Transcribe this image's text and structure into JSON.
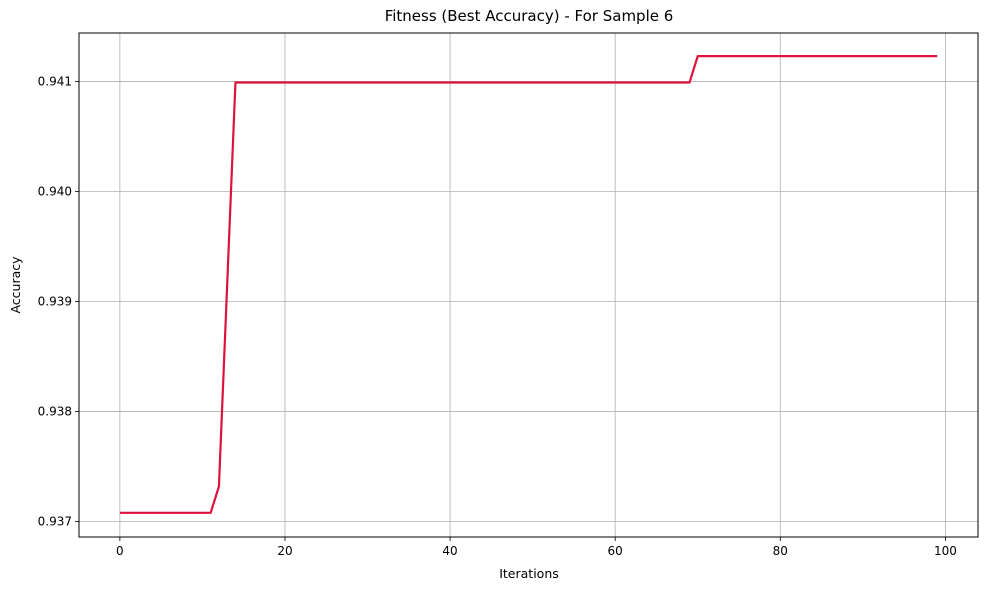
{
  "chart_data": {
    "type": "line",
    "title": "Fitness (Best Accuracy) - For Sample 6",
    "xlabel": "Iterations",
    "ylabel": "Accuracy",
    "xlim": [
      -4.95,
      103.95
    ],
    "ylim": [
      0.93686,
      0.94144
    ],
    "grid": true,
    "legend": false,
    "x_ticks": [
      0,
      20,
      40,
      60,
      80,
      100
    ],
    "x_tick_labels": [
      "0",
      "20",
      "40",
      "60",
      "80",
      "100"
    ],
    "y_ticks": [
      0.937,
      0.938,
      0.939,
      0.94,
      0.941
    ],
    "y_tick_labels": [
      "0.937",
      "0.938",
      "0.939",
      "0.940",
      "0.941"
    ],
    "series": [
      {
        "color": "#dc143c",
        "points": [
          [
            0,
            0.93708
          ],
          [
            11,
            0.93708
          ],
          [
            12,
            0.93732
          ],
          [
            14,
            0.94099
          ],
          [
            69,
            0.94099
          ],
          [
            70,
            0.94123
          ],
          [
            99,
            0.94123
          ]
        ]
      }
    ]
  }
}
